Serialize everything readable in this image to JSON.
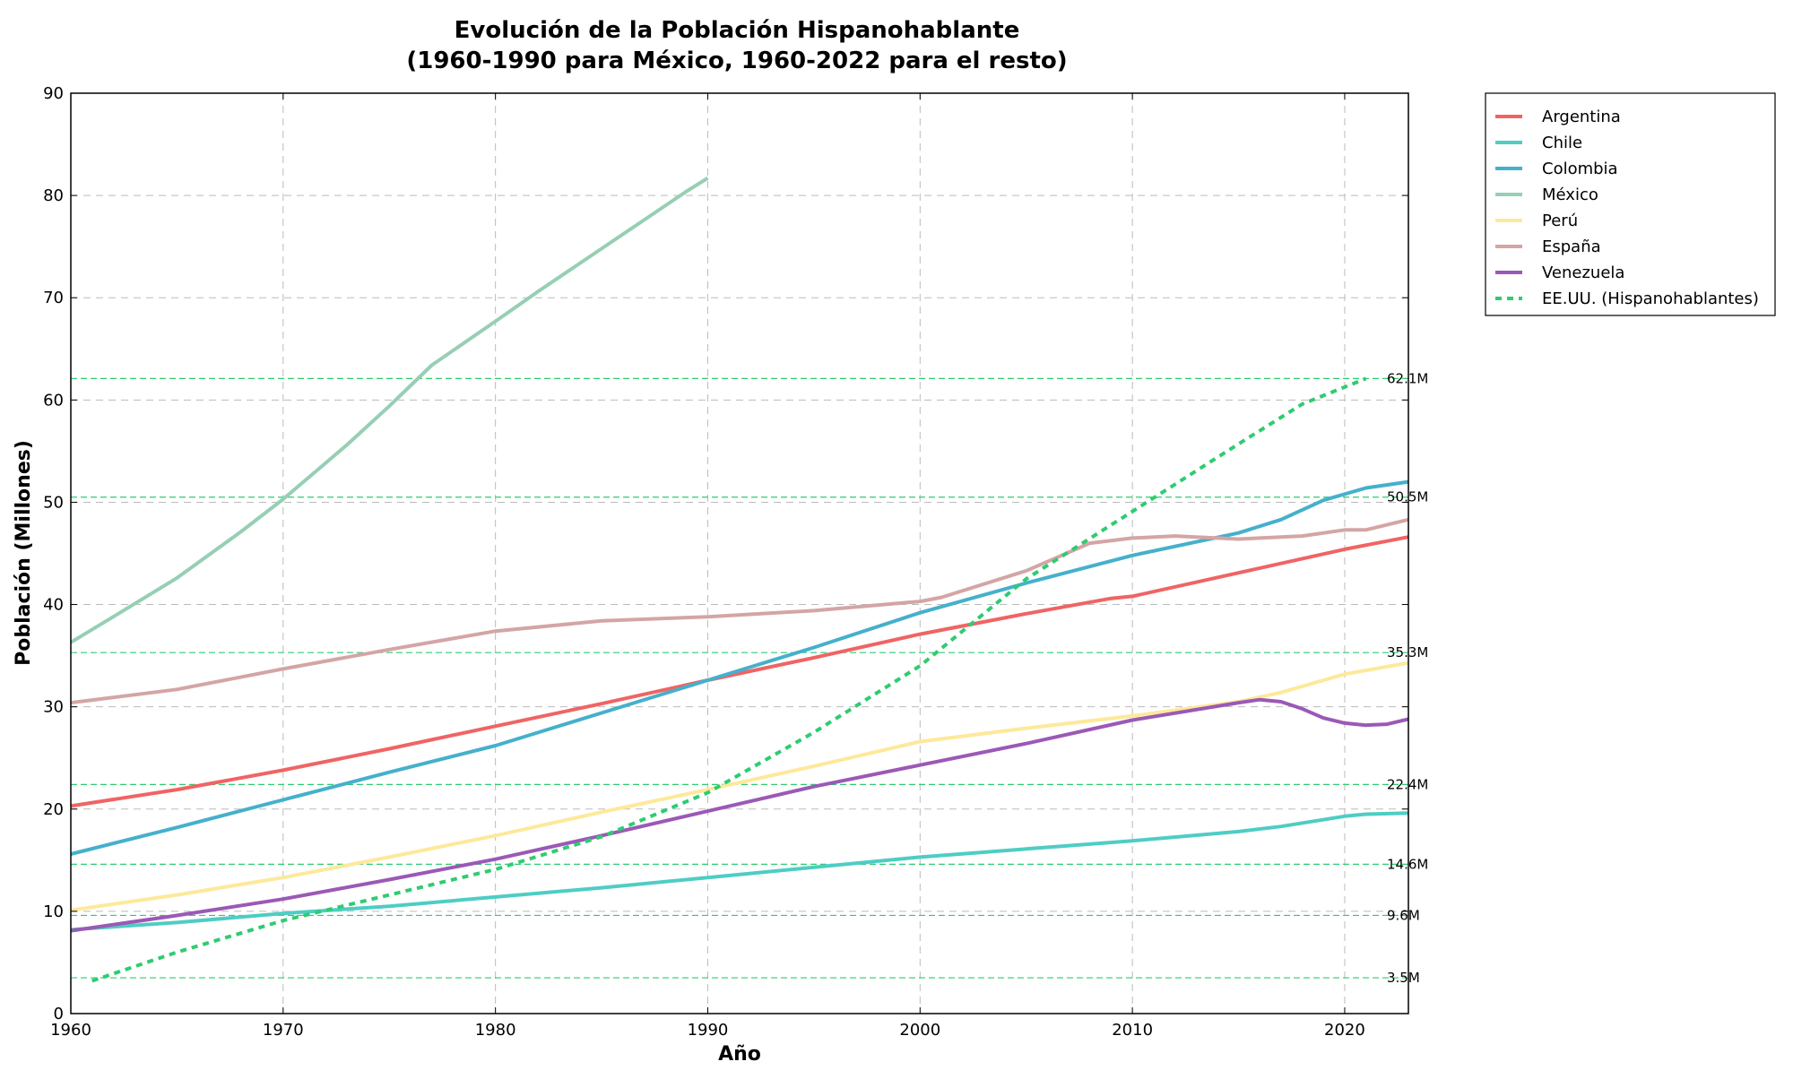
{
  "chart_data": {
    "type": "line",
    "title_line1": "Evolución de la Población Hispanohablante",
    "title_line2": "(1960-1990 para México, 1960-2022 para el resto)",
    "xlabel": "Año",
    "ylabel": "Población (Millones)",
    "xlim": [
      1960,
      2023
    ],
    "ylim": [
      0,
      90
    ],
    "xticks": [
      1960,
      1970,
      1980,
      1990,
      2000,
      2010,
      2020
    ],
    "yticks": [
      0,
      10,
      20,
      30,
      40,
      50,
      60,
      70,
      80,
      90
    ],
    "grid": true,
    "legend_position": "outside top-right",
    "reference_lines": [
      {
        "value": 3.5,
        "label": "3.5M"
      },
      {
        "value": 9.6,
        "label": "9.6M"
      },
      {
        "value": 14.6,
        "label": "14.6M"
      },
      {
        "value": 22.4,
        "label": "22.4M"
      },
      {
        "value": 35.3,
        "label": "35.3M"
      },
      {
        "value": 50.5,
        "label": "50.5M"
      },
      {
        "value": 62.1,
        "label": "62.1M"
      }
    ],
    "reference_line_color": "#2ecc71",
    "series": [
      {
        "name": "Argentina",
        "color": "#f06464",
        "style": "solid",
        "points": [
          [
            1960,
            20.3
          ],
          [
            1965,
            21.9
          ],
          [
            1970,
            23.8
          ],
          [
            1975,
            25.9
          ],
          [
            1980,
            28.1
          ],
          [
            1985,
            30.3
          ],
          [
            1990,
            32.6
          ],
          [
            1995,
            34.8
          ],
          [
            2000,
            37.1
          ],
          [
            2005,
            39.1
          ],
          [
            2009,
            40.6
          ],
          [
            2010,
            40.8
          ],
          [
            2015,
            43.1
          ],
          [
            2020,
            45.4
          ],
          [
            2023,
            46.6
          ]
        ]
      },
      {
        "name": "Chile",
        "color": "#4ecdc4",
        "style": "solid",
        "points": [
          [
            1960,
            8.2
          ],
          [
            1965,
            8.9
          ],
          [
            1970,
            9.8
          ],
          [
            1975,
            10.5
          ],
          [
            1980,
            11.4
          ],
          [
            1985,
            12.3
          ],
          [
            1990,
            13.3
          ],
          [
            1995,
            14.3
          ],
          [
            2000,
            15.3
          ],
          [
            2005,
            16.1
          ],
          [
            2010,
            16.9
          ],
          [
            2015,
            17.8
          ],
          [
            2017,
            18.3
          ],
          [
            2020,
            19.3
          ],
          [
            2021,
            19.5
          ],
          [
            2023,
            19.6
          ]
        ]
      },
      {
        "name": "Colombia",
        "color": "#45b0cc",
        "style": "solid",
        "points": [
          [
            1960,
            15.6
          ],
          [
            1965,
            18.2
          ],
          [
            1970,
            20.9
          ],
          [
            1975,
            23.6
          ],
          [
            1980,
            26.2
          ],
          [
            1985,
            29.4
          ],
          [
            1990,
            32.6
          ],
          [
            1995,
            35.8
          ],
          [
            2000,
            39.2
          ],
          [
            2005,
            42.1
          ],
          [
            2010,
            44.8
          ],
          [
            2015,
            47.0
          ],
          [
            2017,
            48.3
          ],
          [
            2019,
            50.2
          ],
          [
            2021,
            51.4
          ],
          [
            2023,
            52.0
          ]
        ]
      },
      {
        "name": "México",
        "color": "#96cfb4",
        "style": "solid",
        "points": [
          [
            1960,
            36.3
          ],
          [
            1962,
            38.8
          ],
          [
            1965,
            42.6
          ],
          [
            1968,
            47.1
          ],
          [
            1970,
            50.3
          ],
          [
            1973,
            55.6
          ],
          [
            1975,
            59.4
          ],
          [
            1977,
            63.4
          ],
          [
            1980,
            67.7
          ],
          [
            1982,
            70.6
          ],
          [
            1985,
            74.8
          ],
          [
            1987,
            77.6
          ],
          [
            1989,
            80.4
          ],
          [
            1990,
            81.7
          ]
        ]
      },
      {
        "name": "Perú",
        "color": "#fde99a",
        "style": "solid",
        "points": [
          [
            1960,
            10.1
          ],
          [
            1965,
            11.6
          ],
          [
            1970,
            13.3
          ],
          [
            1975,
            15.3
          ],
          [
            1980,
            17.4
          ],
          [
            1985,
            19.7
          ],
          [
            1990,
            21.9
          ],
          [
            1995,
            24.2
          ],
          [
            2000,
            26.6
          ],
          [
            2005,
            27.9
          ],
          [
            2010,
            29.1
          ],
          [
            2015,
            30.5
          ],
          [
            2017,
            31.4
          ],
          [
            2020,
            33.2
          ],
          [
            2023,
            34.3
          ]
        ]
      },
      {
        "name": "España",
        "color": "#d4a5a5",
        "style": "solid",
        "points": [
          [
            1960,
            30.4
          ],
          [
            1965,
            31.7
          ],
          [
            1970,
            33.7
          ],
          [
            1975,
            35.6
          ],
          [
            1980,
            37.4
          ],
          [
            1985,
            38.4
          ],
          [
            1990,
            38.8
          ],
          [
            1995,
            39.4
          ],
          [
            2000,
            40.3
          ],
          [
            2001,
            40.7
          ],
          [
            2005,
            43.3
          ],
          [
            2008,
            46.0
          ],
          [
            2010,
            46.5
          ],
          [
            2012,
            46.7
          ],
          [
            2015,
            46.4
          ],
          [
            2018,
            46.7
          ],
          [
            2020,
            47.3
          ],
          [
            2021,
            47.3
          ],
          [
            2023,
            48.3
          ]
        ]
      },
      {
        "name": "Venezuela",
        "color": "#9b59b6",
        "style": "solid",
        "points": [
          [
            1960,
            8.1
          ],
          [
            1965,
            9.6
          ],
          [
            1970,
            11.2
          ],
          [
            1975,
            13.1
          ],
          [
            1980,
            15.1
          ],
          [
            1985,
            17.4
          ],
          [
            1990,
            19.8
          ],
          [
            1995,
            22.2
          ],
          [
            2000,
            24.3
          ],
          [
            2005,
            26.4
          ],
          [
            2010,
            28.7
          ],
          [
            2015,
            30.4
          ],
          [
            2016,
            30.7
          ],
          [
            2017,
            30.5
          ],
          [
            2018,
            29.8
          ],
          [
            2019,
            28.9
          ],
          [
            2020,
            28.4
          ],
          [
            2021,
            28.2
          ],
          [
            2022,
            28.3
          ],
          [
            2023,
            28.8
          ]
        ]
      },
      {
        "name": "EE.UU. (Hispanohablantes)",
        "color": "#2ecc71",
        "style": "dashed",
        "points": [
          [
            1961,
            3.2
          ],
          [
            1965,
            6.0
          ],
          [
            1970,
            9.1
          ],
          [
            1975,
            11.6
          ],
          [
            1980,
            14.1
          ],
          [
            1985,
            17.3
          ],
          [
            1990,
            21.6
          ],
          [
            1995,
            27.5
          ],
          [
            2000,
            34.0
          ],
          [
            2005,
            42.5
          ],
          [
            2010,
            49.1
          ],
          [
            2015,
            55.7
          ],
          [
            2018,
            59.6
          ],
          [
            2021,
            62.1
          ]
        ]
      }
    ]
  }
}
